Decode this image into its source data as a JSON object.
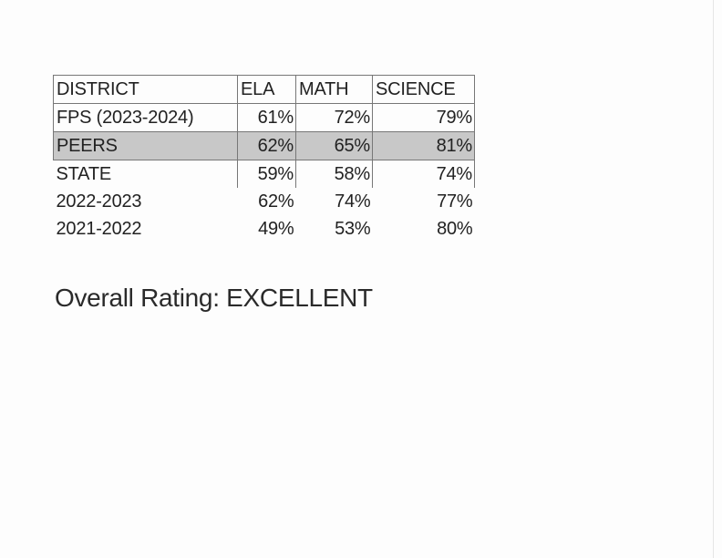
{
  "table": {
    "headers": [
      "DISTRICT",
      "ELA",
      "MATH",
      "SCIENCE"
    ],
    "rows": [
      {
        "district": "FPS (2023-2024)",
        "ela": "61%",
        "math": "72%",
        "science": "79%"
      },
      {
        "district": "PEERS",
        "ela": "62%",
        "math": "65%",
        "science": "81%"
      },
      {
        "district": "STATE",
        "ela": "59%",
        "math": "58%",
        "science": "74%"
      },
      {
        "district": "2022-2023",
        "ela": "62%",
        "math": "74%",
        "science": "77%"
      },
      {
        "district": "2021-2022",
        "ela": "49%",
        "math": "53%",
        "science": "80%"
      }
    ],
    "highlight_color": "#c8c8c8"
  },
  "rating": {
    "label": "Overall Rating:",
    "value": "EXCELLENT"
  }
}
